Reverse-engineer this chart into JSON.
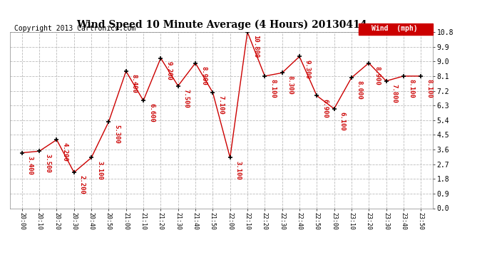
{
  "title": "Wind Speed 10 Minute Average (4 Hours) 20130414",
  "copyright": "Copyright 2013 Cartronics.com",
  "legend_label": "Wind  (mph)",
  "x_labels": [
    "20:00",
    "20:10",
    "20:20",
    "20:30",
    "20:40",
    "20:50",
    "21:00",
    "21:10",
    "21:20",
    "21:30",
    "21:40",
    "21:50",
    "22:00",
    "22:10",
    "22:20",
    "22:30",
    "22:40",
    "22:50",
    "23:00",
    "23:10",
    "23:20",
    "23:30",
    "23:40",
    "23:50"
  ],
  "y_values": [
    3.4,
    3.5,
    4.2,
    2.2,
    3.1,
    5.3,
    8.4,
    6.6,
    9.2,
    7.5,
    8.9,
    7.1,
    3.1,
    10.8,
    8.1,
    8.3,
    9.3,
    6.9,
    6.1,
    8.0,
    8.9,
    7.8,
    8.1,
    8.1
  ],
  "line_color": "#cc0000",
  "marker_color": "#000000",
  "annotation_color": "#cc0000",
  "background_color": "#ffffff",
  "grid_color": "#bbbbbb",
  "ylim": [
    0.0,
    10.8
  ],
  "yticks": [
    0.0,
    0.9,
    1.8,
    2.7,
    3.6,
    4.5,
    5.4,
    6.3,
    7.2,
    8.1,
    9.0,
    9.9,
    10.8
  ],
  "title_fontsize": 10,
  "copyright_fontsize": 7,
  "annotation_fontsize": 6.5,
  "legend_bg": "#cc0000",
  "legend_text_color": "#ffffff"
}
